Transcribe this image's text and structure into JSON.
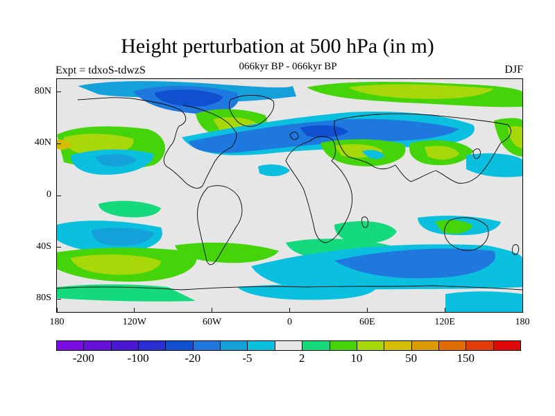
{
  "header": {
    "title": "Height perturbation at 500 hPa (in m)",
    "left_label": "Expt = tdxoS-tdwzS",
    "center_label": "066kyr BP - 066kyr BP",
    "right_label": "DJF"
  },
  "map": {
    "projection": "cylindrical equidistant",
    "lon_range": [
      -180,
      180
    ],
    "lat_range": [
      -90,
      90
    ],
    "x_ticks": [
      {
        "value": -180,
        "label": "180"
      },
      {
        "value": -120,
        "label": "120W"
      },
      {
        "value": -60,
        "label": "60W"
      },
      {
        "value": 0,
        "label": "0"
      },
      {
        "value": 60,
        "label": "60E"
      },
      {
        "value": 120,
        "label": "120E"
      },
      {
        "value": 180,
        "label": "180"
      }
    ],
    "y_ticks": [
      {
        "value": 80,
        "label": "80N"
      },
      {
        "value": 40,
        "label": "40N"
      },
      {
        "value": 0,
        "label": "0"
      },
      {
        "value": -40,
        "label": "40S"
      },
      {
        "value": -80,
        "label": "80S"
      }
    ],
    "background_color": "#e6e6e6",
    "coastline_color": "#000000"
  },
  "colorbar": {
    "colors": [
      "#7a0ce0",
      "#6610d8",
      "#4a18d2",
      "#2a2fd2",
      "#1050d0",
      "#1f78dd",
      "#14a0d8",
      "#0bc0de",
      "#e6e6e6",
      "#14d97d",
      "#45d40a",
      "#a8d80a",
      "#d2be02",
      "#dc9a04",
      "#e26c04",
      "#e23c0a",
      "#e00808"
    ],
    "labels": [
      {
        "text": "-200",
        "boundary": 1
      },
      {
        "text": "-100",
        "boundary": 3
      },
      {
        "text": "-20",
        "boundary": 5
      },
      {
        "text": "-5",
        "boundary": 7
      },
      {
        "text": "2",
        "boundary": 9
      },
      {
        "text": "10",
        "boundary": 11
      },
      {
        "text": "50",
        "boundary": 13
      },
      {
        "text": "150",
        "boundary": 15
      }
    ]
  }
}
